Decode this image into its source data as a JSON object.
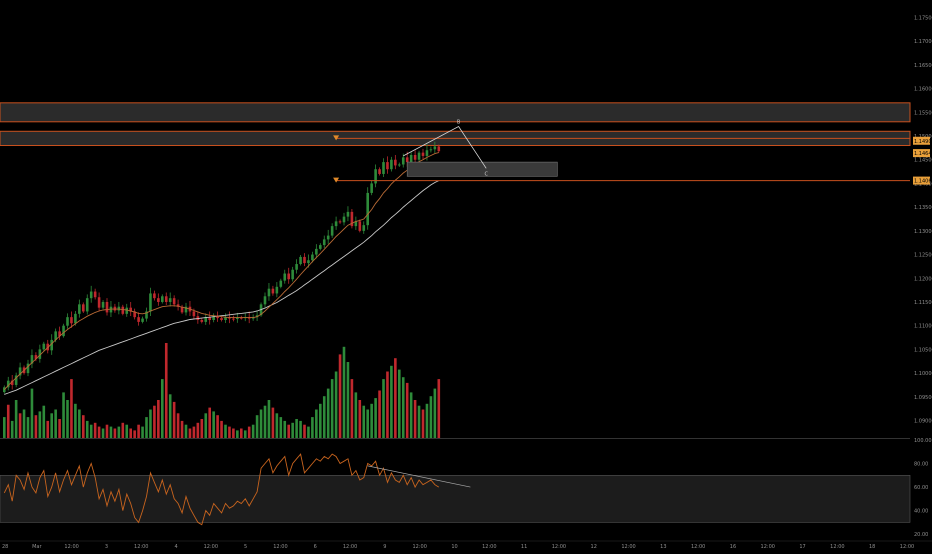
{
  "colors": {
    "background": "#000000",
    "up": "#2e8b3a",
    "down": "#c0282d",
    "zone_line": "#c8501e",
    "zone_fill": "#2b2b2b",
    "marker_orange": "#e08a2a",
    "ma_fast": "#b86a35",
    "ma_slow": "#c8c8c8",
    "rsi": "#c8641e",
    "axis_text": "#8f8f8f",
    "grid": "#666666",
    "price_tag": "#e9a03a"
  },
  "chart_data": [
    {
      "type": "candlestick",
      "panel": "price",
      "y_axis_labels": [
        "1.17500",
        "1.17000",
        "1.16500",
        "1.16000",
        "1.15500",
        "1.15000",
        "1.14500",
        "1.14000",
        "1.13500",
        "1.13000",
        "1.12500",
        "1.12000",
        "1.11500",
        "1.11000",
        "1.10500",
        "1.10000",
        "1.09500",
        "1.09000"
      ],
      "ylim": [
        1.088,
        1.177
      ],
      "price_tags": [
        "1.1490",
        "1.1464",
        "1.1406"
      ],
      "x_axis_labels": [
        "28",
        "Mar",
        "12:00",
        "3",
        "12:00",
        "4",
        "12:00",
        "5",
        "12:00",
        "6",
        "12:00",
        "9",
        "12:00",
        "10",
        "12:00",
        "11",
        "12:00",
        "12",
        "12:00",
        "13",
        "12:00",
        "16",
        "12:00",
        "17",
        "12:00",
        "18",
        "12:00"
      ],
      "candles": {
        "n": 111,
        "close": [
          1.097,
          1.0984,
          1.0975,
          1.0995,
          1.1012,
          1.1,
          1.102,
          1.1038,
          1.103,
          1.105,
          1.1062,
          1.1048,
          1.107,
          1.1088,
          1.1078,
          1.11,
          1.1118,
          1.1105,
          1.1125,
          1.1145,
          1.113,
          1.1158,
          1.1172,
          1.116,
          1.1138,
          1.115,
          1.1128,
          1.114,
          1.1132,
          1.114,
          1.1125,
          1.1138,
          1.113,
          1.1118,
          1.1108,
          1.1115,
          1.113,
          1.1168,
          1.1158,
          1.115,
          1.1162,
          1.115,
          1.1158,
          1.1145,
          1.114,
          1.1128,
          1.114,
          1.113,
          1.112,
          1.1112,
          1.1108,
          1.1118,
          1.1112,
          1.112,
          1.1116,
          1.1112,
          1.1118,
          1.1115,
          1.1114,
          1.1117,
          1.1116,
          1.1118,
          1.1115,
          1.1118,
          1.1122,
          1.1145,
          1.1162,
          1.1178,
          1.1168,
          1.1182,
          1.1195,
          1.121,
          1.1198,
          1.1218,
          1.123,
          1.1245,
          1.1232,
          1.1238,
          1.125,
          1.1262,
          1.127,
          1.1282,
          1.129,
          1.131,
          1.132,
          1.1318,
          1.133,
          1.134,
          1.131,
          1.132,
          1.13,
          1.1312,
          1.138,
          1.14,
          1.143,
          1.142,
          1.1445,
          1.143,
          1.145,
          1.1438,
          1.144,
          1.1455,
          1.1445,
          1.146,
          1.145,
          1.1465,
          1.1458,
          1.147,
          1.1472,
          1.1478,
          1.1468
        ]
      },
      "ma_fast": [
        1.0965,
        1.0974,
        1.0982,
        1.099,
        1.0998,
        1.1006,
        1.1014,
        1.1022,
        1.103,
        1.1038,
        1.1046,
        1.1054,
        1.1062,
        1.107,
        1.1078,
        1.1085,
        1.1092,
        1.1098,
        1.1104,
        1.111,
        1.1115,
        1.112,
        1.1124,
        1.1128,
        1.1131,
        1.1133,
        1.1134,
        1.1135,
        1.1135,
        1.1135,
        1.1134,
        1.1133,
        1.1131,
        1.1129,
        1.1126,
        1.1125,
        1.1127,
        1.1131,
        1.1134,
        1.1137,
        1.114,
        1.1141,
        1.1142,
        1.1142,
        1.1141,
        1.1139,
        1.1137,
        1.1135,
        1.1132,
        1.1129,
        1.1126,
        1.1124,
        1.1122,
        1.1121,
        1.112,
        1.1119,
        1.1118,
        1.1117,
        1.1117,
        1.1117,
        1.1117,
        1.1117,
        1.1117,
        1.1117,
        1.1119,
        1.1124,
        1.1131,
        1.1139,
        1.1147,
        1.1155,
        1.1163,
        1.1172,
        1.118,
        1.1189,
        1.1198,
        1.1208,
        1.1217,
        1.1226,
        1.1235,
        1.1244,
        1.1252,
        1.1261,
        1.127,
        1.1279,
        1.1288,
        1.1296,
        1.1304,
        1.1312,
        1.1316,
        1.132,
        1.1322,
        1.1325,
        1.1335,
        1.1345,
        1.1358,
        1.1368,
        1.138,
        1.1389,
        1.1399,
        1.1407,
        1.1414,
        1.1422,
        1.1428,
        1.1435,
        1.144,
        1.1446,
        1.145,
        1.1455,
        1.1459,
        1.1463,
        1.1465
      ],
      "ma_slow": [
        1.0955,
        1.0958,
        1.0961,
        1.0964,
        1.0968,
        1.0972,
        1.0976,
        1.098,
        1.0984,
        1.0988,
        1.0992,
        1.0996,
        1.1,
        1.1004,
        1.1008,
        1.1012,
        1.1016,
        1.102,
        1.1024,
        1.1028,
        1.1032,
        1.1036,
        1.104,
        1.1044,
        1.1048,
        1.1051,
        1.1054,
        1.1057,
        1.106,
        1.1063,
        1.1066,
        1.1069,
        1.1072,
        1.1075,
        1.1078,
        1.1081,
        1.1084,
        1.1087,
        1.109,
        1.1093,
        1.1096,
        1.1099,
        1.1102,
        1.1105,
        1.1107,
        1.1109,
        1.1111,
        1.1113,
        1.1114,
        1.1115,
        1.1116,
        1.1117,
        1.1118,
        1.1119,
        1.112,
        1.1121,
        1.1122,
        1.1123,
        1.1124,
        1.1125,
        1.1126,
        1.1127,
        1.1128,
        1.1129,
        1.1131,
        1.1134,
        1.1137,
        1.1141,
        1.1145,
        1.1149,
        1.1154,
        1.1159,
        1.1164,
        1.1169,
        1.1174,
        1.118,
        1.1186,
        1.1192,
        1.1198,
        1.1204,
        1.121,
        1.1216,
        1.1222,
        1.1228,
        1.1234,
        1.124,
        1.1246,
        1.1252,
        1.1258,
        1.1264,
        1.127,
        1.1276,
        1.1283,
        1.129,
        1.1298,
        1.1305,
        1.1312,
        1.132,
        1.1328,
        1.1335,
        1.1342,
        1.135,
        1.1357,
        1.1364,
        1.1371,
        1.1378,
        1.1385,
        1.1391,
        1.1397,
        1.1402,
        1.1406
      ],
      "zones": [
        {
          "top": 1.157,
          "bottom": 1.153
        },
        {
          "top": 1.151,
          "bottom": 1.148
        }
      ],
      "boxes": [
        {
          "x_start": 102,
          "x_end": 140,
          "top": 1.1445,
          "bottom": 1.1415
        }
      ],
      "h_lines": [
        {
          "value": 1.1495,
          "x_start": 84
        },
        {
          "value": 1.1406,
          "x_start": 84
        }
      ],
      "pattern_points": [
        {
          "bar": 101,
          "value": 1.1458
        },
        {
          "bar": 115,
          "value": 1.152
        },
        {
          "bar": 122,
          "value": 1.1432
        }
      ],
      "pattern_labels": [
        "B",
        "C"
      ]
    },
    {
      "type": "bar",
      "panel": "volume",
      "values": [
        22,
        35,
        18,
        40,
        26,
        30,
        22,
        52,
        24,
        28,
        34,
        18,
        26,
        30,
        20,
        48,
        40,
        62,
        36,
        30,
        24,
        18,
        14,
        16,
        12,
        10,
        14,
        12,
        10,
        12,
        16,
        14,
        10,
        8,
        14,
        12,
        22,
        30,
        34,
        40,
        62,
        100,
        46,
        38,
        26,
        18,
        14,
        10,
        12,
        16,
        20,
        26,
        32,
        28,
        24,
        18,
        14,
        12,
        10,
        8,
        10,
        8,
        12,
        14,
        24,
        30,
        34,
        40,
        32,
        26,
        22,
        18,
        14,
        16,
        20,
        18,
        14,
        12,
        22,
        30,
        36,
        44,
        52,
        62,
        70,
        88,
        96,
        80,
        62,
        48,
        40,
        34,
        30,
        36,
        42,
        50,
        62,
        70,
        76,
        84,
        72,
        64,
        58,
        48,
        40,
        34,
        30,
        36,
        44,
        52,
        62
      ],
      "directions": [
        "up",
        "down",
        "up",
        "up",
        "down",
        "up",
        "up",
        "up",
        "down",
        "up",
        "up",
        "down",
        "up",
        "up",
        "down",
        "up",
        "up",
        "down",
        "up",
        "up",
        "down",
        "up",
        "up",
        "down",
        "down",
        "up",
        "down",
        "up",
        "down",
        "up",
        "down",
        "up",
        "down",
        "down",
        "down",
        "up",
        "up",
        "up",
        "down",
        "down",
        "up",
        "down",
        "up",
        "down",
        "down",
        "down",
        "up",
        "down",
        "down",
        "down",
        "down",
        "up",
        "down",
        "up",
        "down",
        "down",
        "up",
        "down",
        "down",
        "up",
        "down",
        "up",
        "down",
        "up",
        "up",
        "up",
        "up",
        "up",
        "down",
        "up",
        "up",
        "up",
        "down",
        "up",
        "up",
        "up",
        "down",
        "up",
        "up",
        "up",
        "up",
        "up",
        "up",
        "up",
        "up",
        "down",
        "up",
        "up",
        "down",
        "up",
        "down",
        "up",
        "up",
        "up",
        "up",
        "down",
        "up",
        "down",
        "up",
        "down",
        "up",
        "up",
        "down",
        "up",
        "down",
        "up",
        "down",
        "up",
        "up",
        "up",
        "down"
      ]
    },
    {
      "type": "line",
      "panel": "rsi",
      "y_axis_labels": [
        "100.00",
        "80.00",
        "60.00",
        "40.00",
        "20.00"
      ],
      "ylim": [
        15,
        100
      ],
      "band": [
        30,
        70
      ],
      "values": [
        55,
        62,
        48,
        70,
        66,
        58,
        72,
        60,
        55,
        68,
        74,
        52,
        60,
        72,
        56,
        66,
        74,
        62,
        70,
        78,
        60,
        72,
        80,
        68,
        50,
        58,
        44,
        56,
        48,
        58,
        40,
        54,
        46,
        34,
        30,
        40,
        52,
        72,
        64,
        56,
        66,
        54,
        62,
        50,
        46,
        38,
        52,
        42,
        36,
        30,
        28,
        40,
        36,
        46,
        42,
        38,
        46,
        42,
        44,
        48,
        46,
        50,
        44,
        50,
        56,
        76,
        80,
        84,
        72,
        78,
        82,
        86,
        70,
        80,
        84,
        88,
        72,
        76,
        80,
        84,
        82,
        86,
        84,
        88,
        86,
        80,
        82,
        84,
        70,
        74,
        66,
        68,
        80,
        78,
        82,
        70,
        76,
        64,
        72,
        66,
        64,
        70,
        62,
        68,
        60,
        66,
        62,
        64,
        66,
        62,
        60
      ],
      "trend_line": {
        "bar_start": 92,
        "value_start": 78,
        "bar_end": 118,
        "value_end": 60
      }
    }
  ]
}
